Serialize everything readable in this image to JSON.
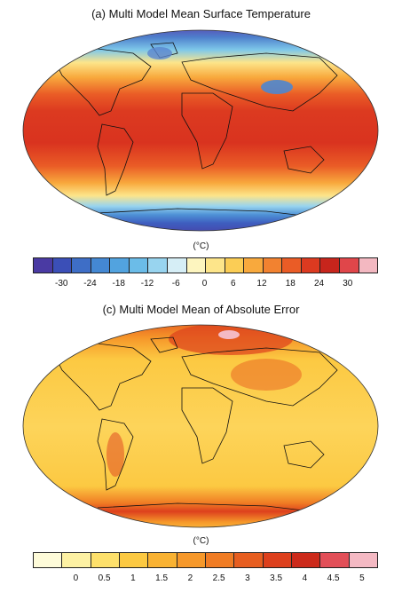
{
  "panel_a": {
    "title": "(a) Multi Model Mean Surface Temperature",
    "unit": "(°C)",
    "colorbar": {
      "colors": [
        "#4a3aa3",
        "#3b4fb7",
        "#3e6ec6",
        "#4488d3",
        "#52a3df",
        "#6bbce8",
        "#98d4ef",
        "#d6eef6",
        "#fdf5bf",
        "#fde58a",
        "#fbcd55",
        "#f8a93d",
        "#f28230",
        "#ea5c26",
        "#dc3a20",
        "#c7251c",
        "#e0464a",
        "#f3b8c1"
      ],
      "ticks": [
        "-30",
        "-24",
        "-18",
        "-12",
        "-6",
        "0",
        "6",
        "12",
        "18",
        "24",
        "30"
      ]
    }
  },
  "panel_c": {
    "title": "(c) Multi Model Mean of Absolute Error",
    "unit": "(°C)",
    "colorbar": {
      "colors": [
        "#fefbd9",
        "#fdf1a3",
        "#fde06b",
        "#fcc942",
        "#f9b232",
        "#f6982a",
        "#f07c24",
        "#e75e20",
        "#dd401d",
        "#cc2a1b",
        "#e24f58",
        "#f4b9c3"
      ],
      "ticks": [
        "0",
        "0.5",
        "1",
        "1.5",
        "2",
        "2.5",
        "3",
        "3.5",
        "4",
        "4.5",
        "5"
      ]
    }
  }
}
